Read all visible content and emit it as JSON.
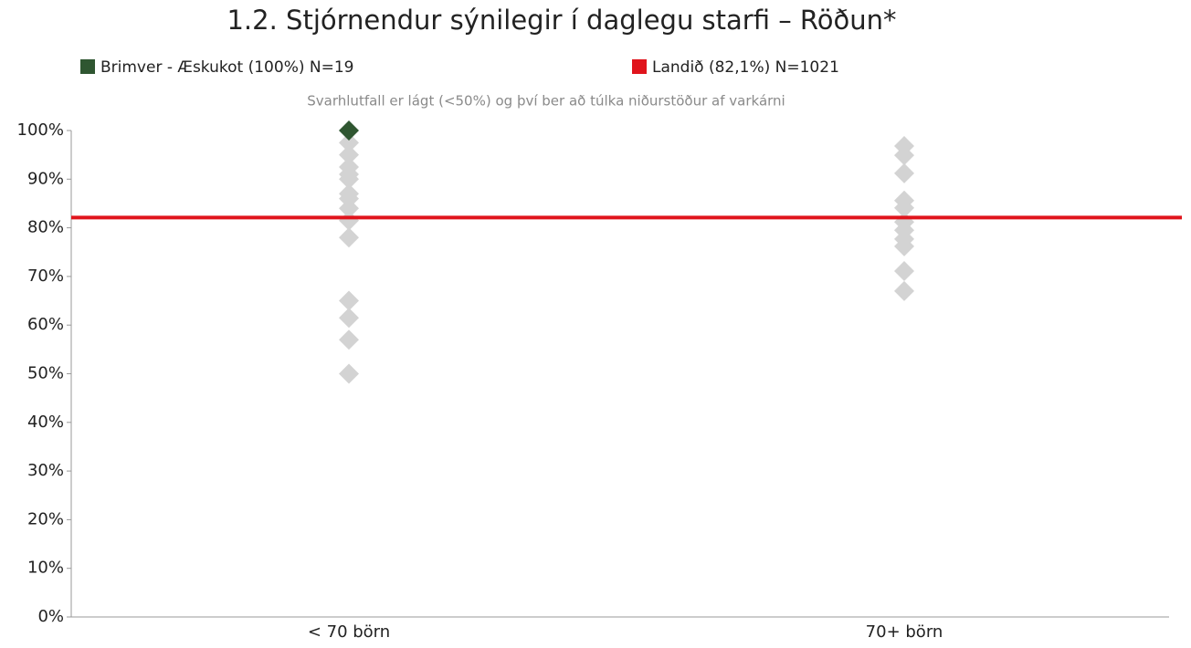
{
  "chart_data": {
    "type": "strip",
    "title": "1.2. Stjórnendur sýnilegir í daglegu starfi – Röðun*",
    "subtitle": "Svarhlutfall er lágt (<50%) og því ber að túlka niðurstöður af varkárni",
    "categories": [
      "< 70 börn",
      "70+ börn"
    ],
    "series": [
      {
        "name": "Brimver - Æskukot (100%) N=19",
        "color": "#2f5631",
        "values": [
          100,
          null
        ]
      }
    ],
    "reference_line": {
      "name": "Landið (82,1%) N=1021",
      "color": "#e0141c",
      "value": 82.1
    },
    "others": {
      "color": "#d3d3d3",
      "values": [
        [
          97.5,
          95,
          92.5,
          91,
          90,
          87,
          86,
          84,
          81.5,
          78,
          65,
          61.5,
          57,
          50
        ],
        [
          96.8,
          94.9,
          91.2,
          85.6,
          84.1,
          81.2,
          79.5,
          77.7,
          76.2,
          71.1,
          67
        ]
      ]
    },
    "ylim": [
      0,
      100
    ],
    "yticks": [
      {
        "value": 0,
        "label": "0%"
      },
      {
        "value": 10,
        "label": "10%"
      },
      {
        "value": 20,
        "label": "20%"
      },
      {
        "value": 30,
        "label": "30%"
      },
      {
        "value": 40,
        "label": "40%"
      },
      {
        "value": 50,
        "label": "50%"
      },
      {
        "value": 60,
        "label": "60%"
      },
      {
        "value": 70,
        "label": "70%"
      },
      {
        "value": 80,
        "label": "80%"
      },
      {
        "value": 90,
        "label": "90%"
      },
      {
        "value": 100,
        "label": "100%"
      }
    ]
  }
}
